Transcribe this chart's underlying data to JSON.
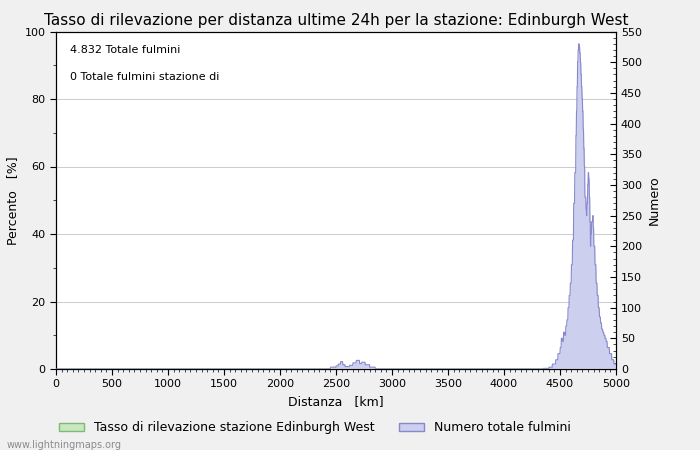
{
  "title": "Tasso di rilevazione per distanza ultime 24h per la stazione: Edinburgh West",
  "annotation_line1": "4.832 Totale fulmini",
  "annotation_line2": "0 Totale fulmini stazione di",
  "xlabel": "Distanza   [km]",
  "ylabel_left": "Percento   [%]",
  "ylabel_right": "Numero",
  "xlim": [
    0,
    5000
  ],
  "ylim_left": [
    0,
    100
  ],
  "ylim_right": [
    0,
    550
  ],
  "xticks": [
    0,
    500,
    1000,
    1500,
    2000,
    2500,
    3000,
    3500,
    4000,
    4500,
    5000
  ],
  "yticks_left": [
    0,
    20,
    40,
    60,
    80,
    100
  ],
  "yticks_right": [
    0,
    50,
    100,
    150,
    200,
    250,
    300,
    350,
    400,
    450,
    500,
    550
  ],
  "legend_label_green": "Tasso di rilevazione stazione Edinburgh West",
  "legend_label_blue": "Numero totale fulmini",
  "watermark": "www.lightningmaps.org",
  "bg_color": "#f0f0f0",
  "plot_bg_color": "#ffffff",
  "green_fill_color": "#c8e8c0",
  "green_line_color": "#80b878",
  "blue_fill_color": "#ccd0ee",
  "blue_line_color": "#8888cc",
  "grid_color": "#cccccc",
  "title_fontsize": 11,
  "label_fontsize": 9,
  "tick_fontsize": 8,
  "annotation_fontsize": 8
}
